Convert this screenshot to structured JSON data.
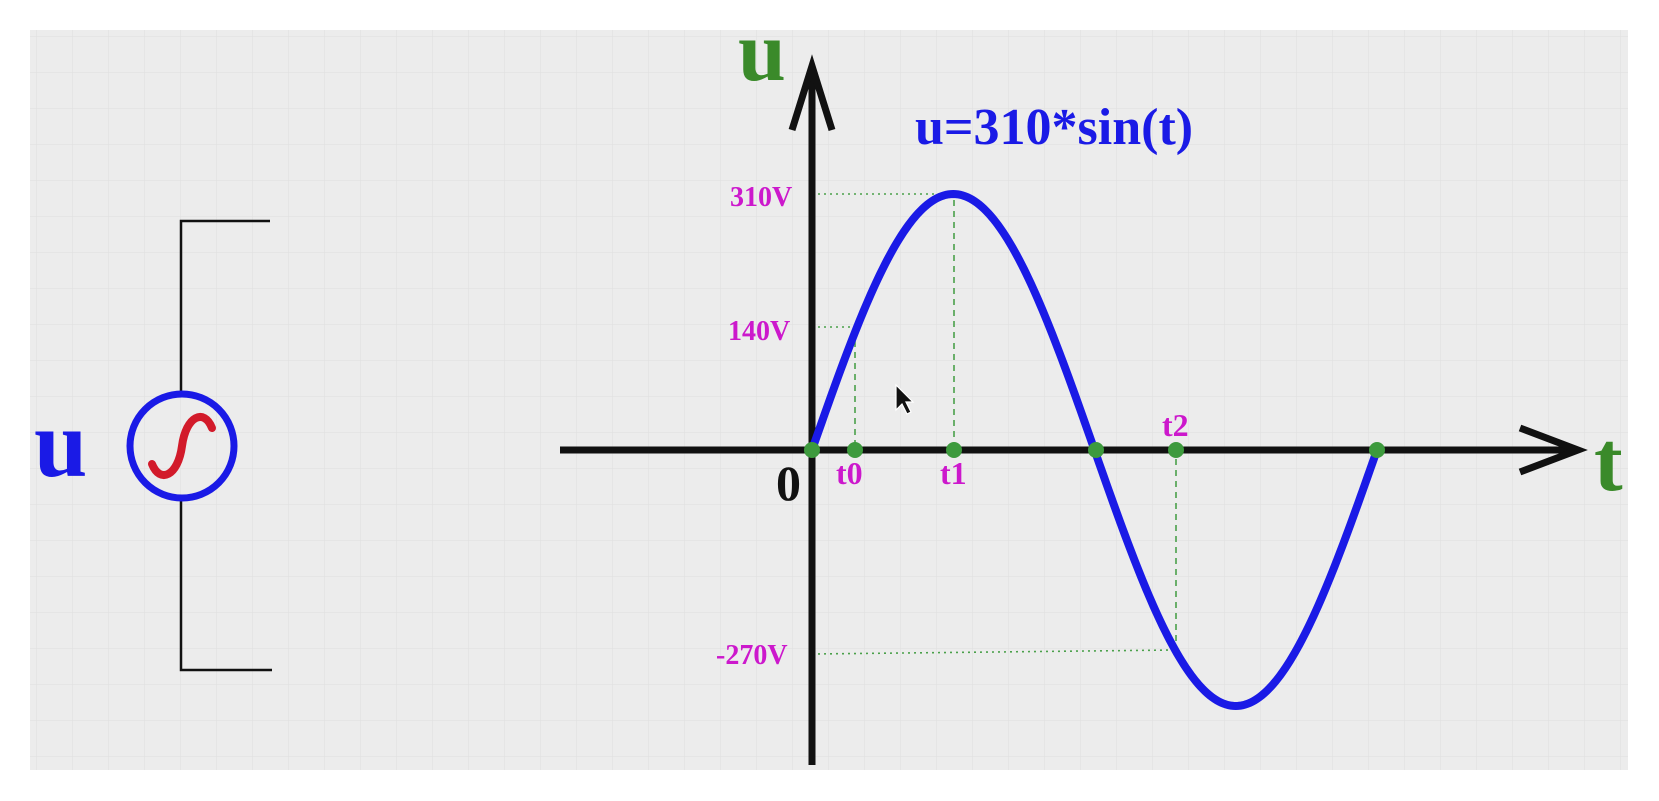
{
  "source_label": "u",
  "formula": "u=310*sin(t)",
  "axes": {
    "y_label": "u",
    "x_label": "t",
    "origin": "0"
  },
  "voltage_labels": {
    "v310": "310V",
    "v140": "140V",
    "vneg270": "-270V"
  },
  "time_labels": {
    "t0": "t0",
    "t1": "t1",
    "t2": "t2"
  },
  "colors": {
    "curve": "#1a1ae6",
    "axis_label": "#3a8a2a",
    "value_label": "#cc18cc",
    "point": "#3d9a3d",
    "guide": "#4aa04a",
    "source_symbol": "#d21a2a",
    "source_text": "#1a1ae6",
    "grid": "#dcdcdc",
    "panel": "#ececec"
  },
  "icons": {
    "source": "ac-source-icon",
    "cursor": "mouse-pointer-icon"
  }
}
